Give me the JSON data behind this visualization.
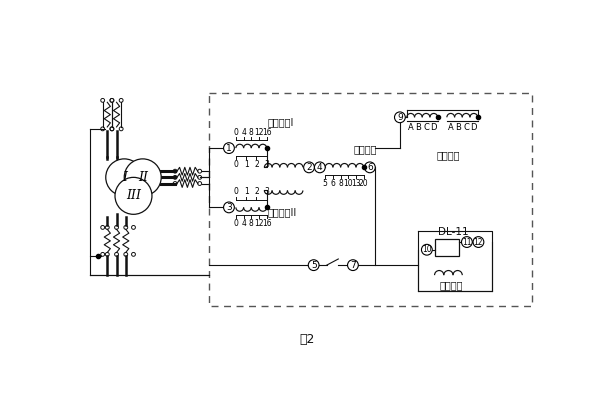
{
  "bg_color": "#ffffff",
  "line_color": "#111111",
  "label_pinghenI": "平衡绕组I",
  "label_pinghenII": "平衡绕组II",
  "label_gongzuo": "工作绕组",
  "label_duanlu": "短路绕组",
  "label_erci": "二次绕组",
  "label_dl11": "DL-11",
  "label_fig": "图2",
  "ticks_bal1_top": [
    "16",
    "12",
    "8",
    "4",
    "0"
  ],
  "ticks_bal1_bot": [
    "0",
    "1",
    "2",
    "3"
  ],
  "ticks_bal2_top": [
    "0",
    "1",
    "2",
    "3"
  ],
  "ticks_bal2_bot": [
    "16",
    "12",
    "8",
    "4",
    "0"
  ],
  "ticks_work": [
    "5",
    "6",
    "8",
    "10",
    "13",
    "20"
  ],
  "abcd": [
    "A",
    "B",
    "C",
    "D"
  ]
}
